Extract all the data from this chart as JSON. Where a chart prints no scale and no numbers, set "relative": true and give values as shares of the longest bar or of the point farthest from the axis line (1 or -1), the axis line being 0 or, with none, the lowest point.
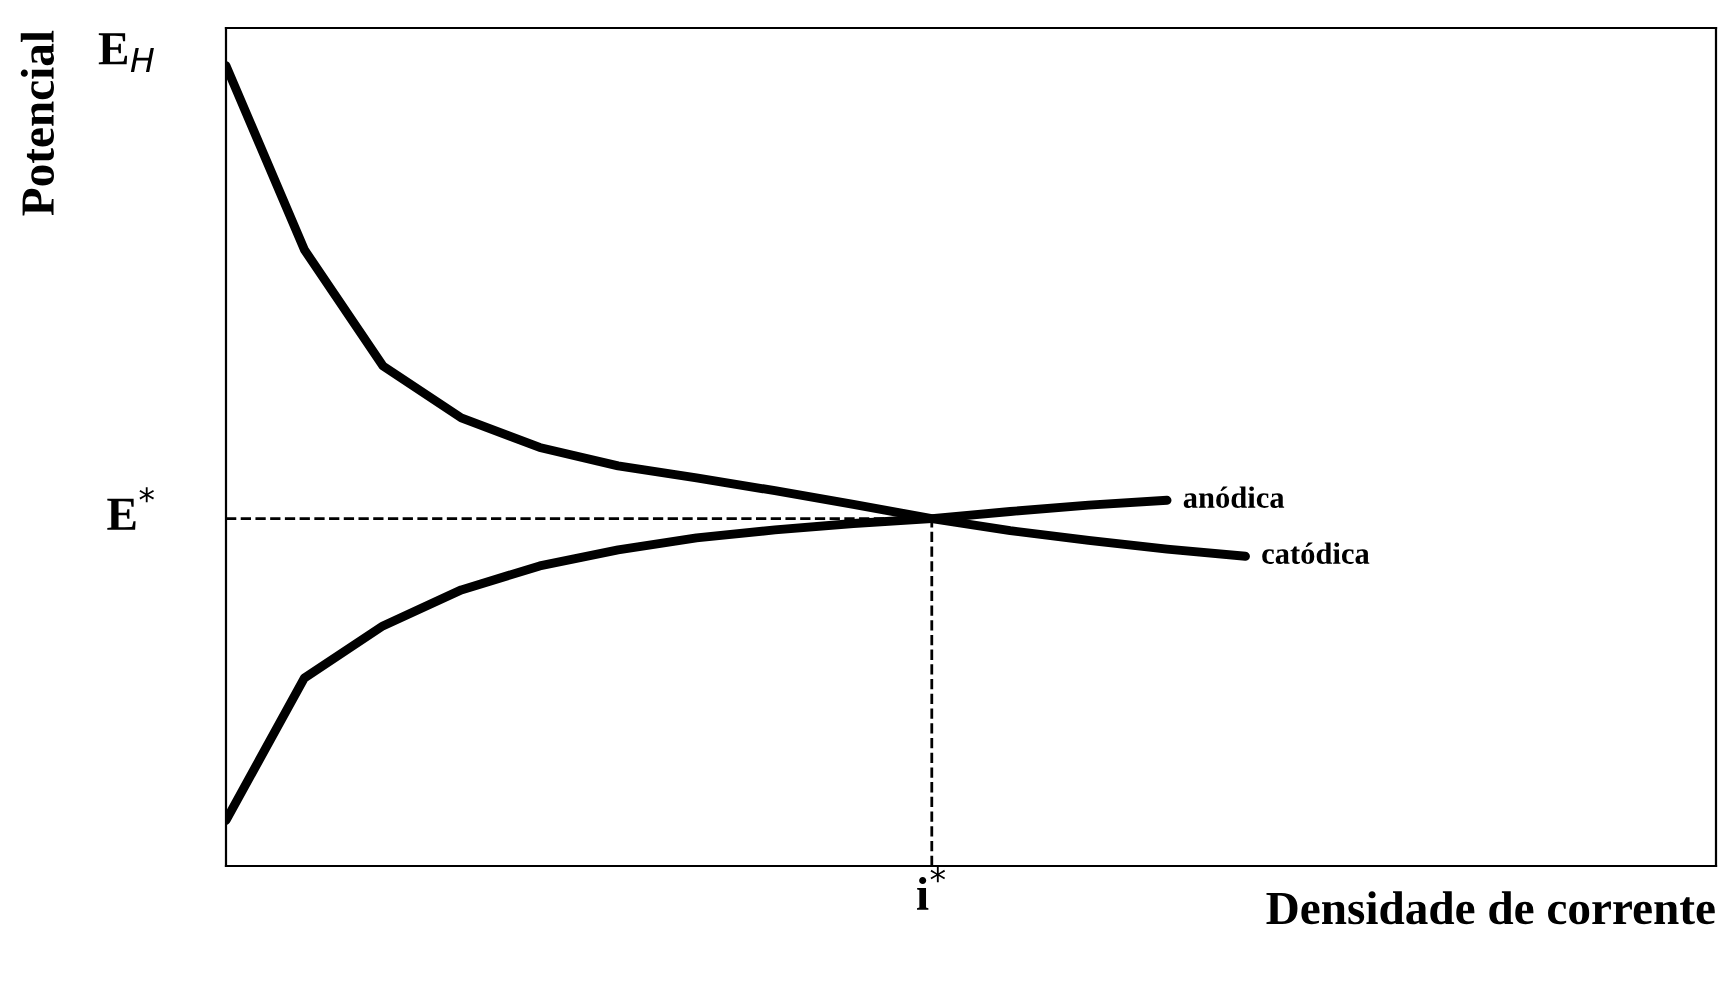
{
  "chart_data": {
    "type": "line",
    "relative": true,
    "xlabel": "Densidade de corrente",
    "ylabel": "Potencial",
    "categories": [
      null,
      null,
      null,
      null,
      null,
      null,
      null,
      null,
      null,
      null,
      null,
      null,
      null,
      null,
      null,
      null,
      null,
      null,
      null,
      null
    ],
    "series": [
      {
        "name": "anódica",
        "color": "#000000",
        "values": [
          0.057,
          0.235,
          0.3,
          0.345,
          0.375,
          0.395,
          0.41,
          0.42,
          0.428,
          0.434,
          0.443,
          0.451,
          0.457,
          null,
          null,
          null,
          null,
          null,
          null,
          null
        ]
      },
      {
        "name": "catódica",
        "color": "#000000",
        "values": [
          1.0,
          0.77,
          0.625,
          0.56,
          0.523,
          0.5,
          0.485,
          0.469,
          0.452,
          0.434,
          0.419,
          0.407,
          0.396,
          0.387,
          null,
          null,
          null,
          null,
          null,
          null
        ]
      }
    ],
    "ref_lines": [
      {
        "axis": "y",
        "value": 0.434,
        "label": "E$^{*}$",
        "line_style": "dashed",
        "color": "#000000"
      }
    ],
    "annotations": [
      "E$_{H}$",
      {
        "text": "i$^{*}$",
        "y": 0.434
      }
    ],
    "marker": "none",
    "line_style": "solid"
  }
}
